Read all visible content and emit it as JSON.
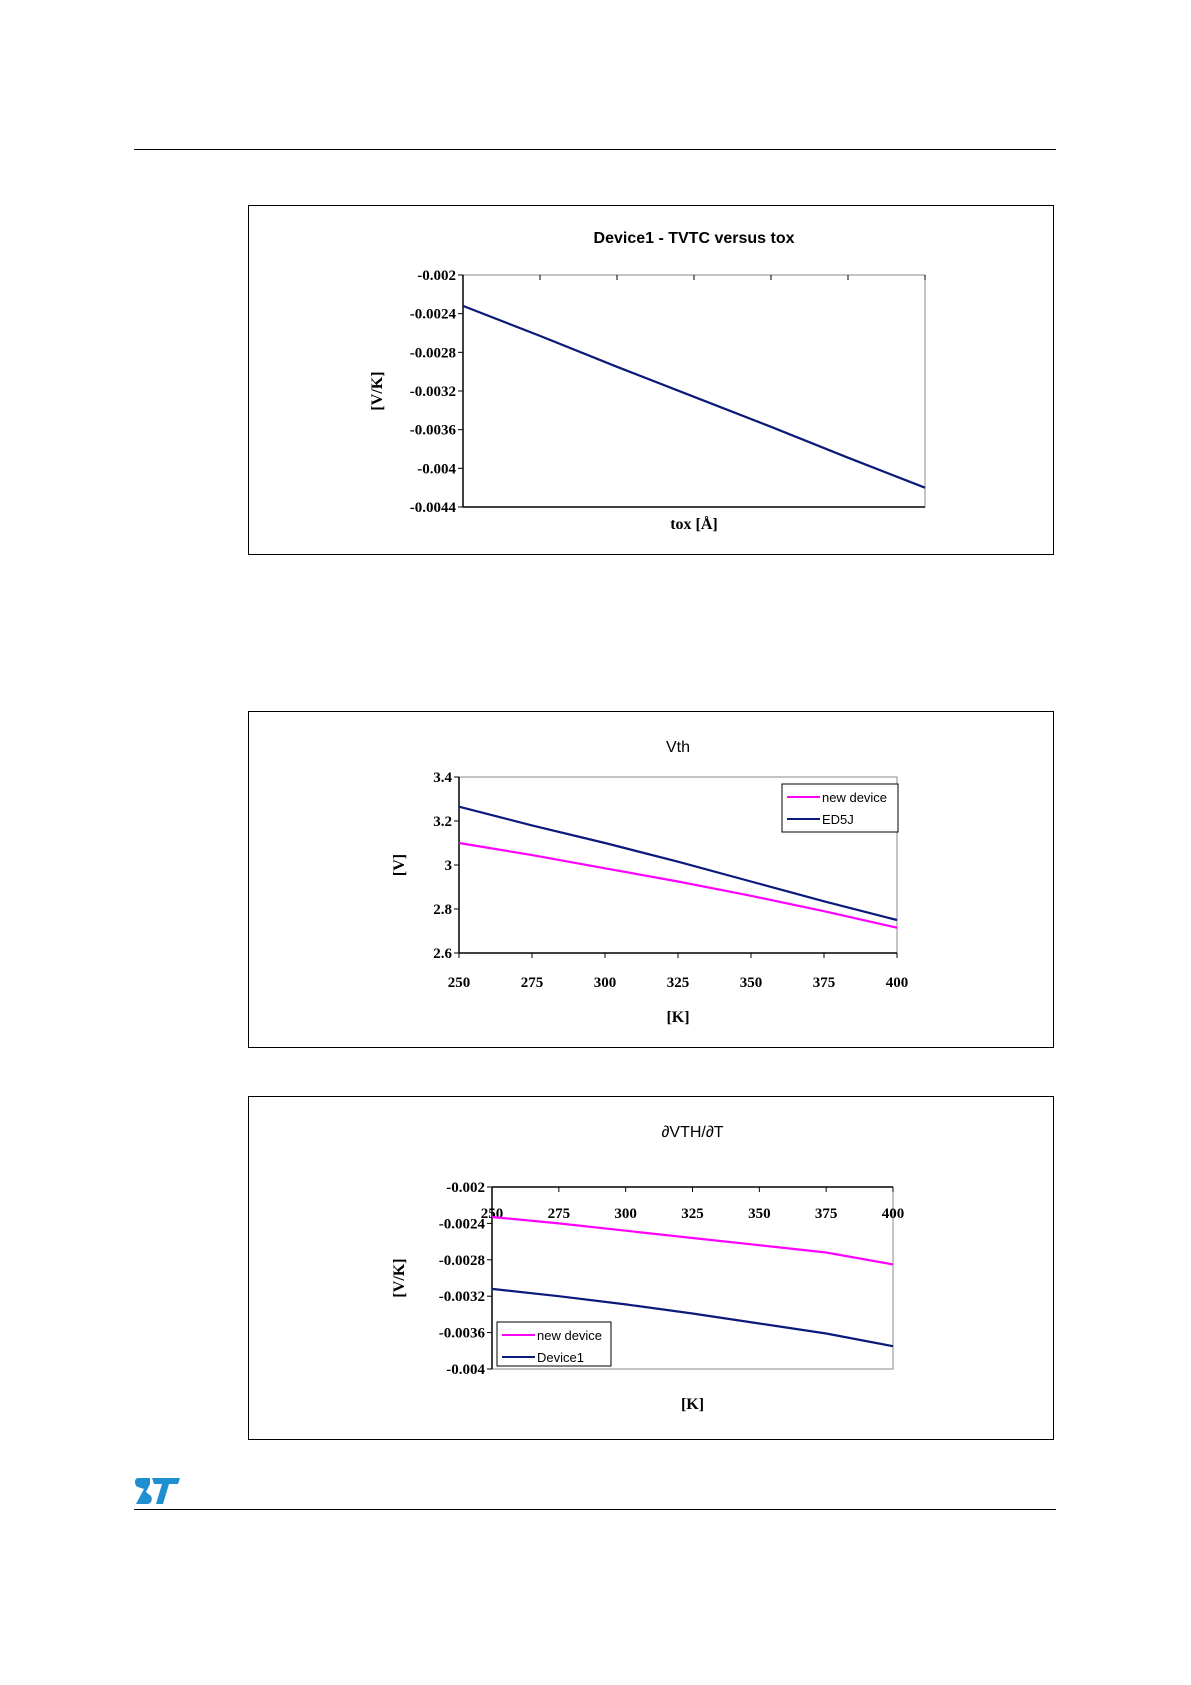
{
  "colors": {
    "navy": "#0a1a7a",
    "magenta": "#ff00ff",
    "logo_blue": "#1e8fd0"
  },
  "logo": {
    "icon": "st-logo-icon",
    "text": "ST"
  },
  "chart_data": [
    {
      "type": "line",
      "title": "Device1 - TVTC versus tox",
      "xlabel": "tox [Å]",
      "ylabel": "[V/K]",
      "xlim": [
        0,
        6
      ],
      "ylim": [
        -0.0044,
        -0.002
      ],
      "yticks": [
        -0.002,
        -0.0024,
        -0.0028,
        -0.0032,
        -0.0036,
        -0.004,
        -0.0044
      ],
      "ytick_labels": [
        "-0.002",
        "-0.0024",
        "-0.0028",
        "-0.0032",
        "-0.0036",
        "-0.004",
        "-0.0044"
      ],
      "grid": false,
      "series": [
        {
          "color": "#0a1a7a",
          "x": [
            0,
            1,
            2,
            3,
            4,
            5,
            6
          ],
          "y": [
            -0.00232,
            -0.00263,
            -0.00295,
            -0.00326,
            -0.00357,
            -0.00389,
            -0.0042
          ]
        }
      ]
    },
    {
      "type": "line",
      "title": "Vth",
      "xlabel": "[K]",
      "ylabel": "[V]",
      "xlim": [
        250,
        400
      ],
      "ylim": [
        2.6,
        3.4
      ],
      "xticks": [
        250,
        275,
        300,
        325,
        350,
        375,
        400
      ],
      "xtick_labels": [
        "250",
        "275",
        "300",
        "325",
        "350",
        "375",
        "400"
      ],
      "yticks": [
        2.6,
        2.8,
        3,
        3.2,
        3.4
      ],
      "ytick_labels": [
        "2.6",
        "2.8",
        "3",
        "3.2",
        "3.4"
      ],
      "legend": "top-right",
      "series": [
        {
          "name": "new device",
          "color": "#ff00ff",
          "x": [
            250,
            275,
            300,
            325,
            350,
            375,
            400
          ],
          "y": [
            3.1,
            3.045,
            2.985,
            2.925,
            2.86,
            2.79,
            2.715
          ]
        },
        {
          "name": "ED5J",
          "color": "#0a1a7a",
          "x": [
            250,
            275,
            300,
            325,
            350,
            375,
            400
          ],
          "y": [
            3.265,
            3.18,
            3.1,
            3.015,
            2.925,
            2.835,
            2.75
          ]
        }
      ]
    },
    {
      "type": "line",
      "title": "∂VTH/∂T",
      "xlabel": "[K]",
      "ylabel": "[V/K]",
      "xlim": [
        250,
        400
      ],
      "ylim": [
        -0.004,
        -0.002
      ],
      "xticks": [
        250,
        275,
        300,
        325,
        350,
        375,
        400
      ],
      "xtick_labels": [
        "250",
        "275",
        "300",
        "325",
        "350",
        "375",
        "400"
      ],
      "yticks": [
        -0.002,
        -0.0024,
        -0.0028,
        -0.0032,
        -0.0036,
        -0.004
      ],
      "ytick_labels": [
        "-0.002",
        "-0.0024",
        "-0.0028",
        "-0.0032",
        "-0.0036",
        "-0.004"
      ],
      "legend": "bottom-left",
      "series": [
        {
          "name": "new device",
          "color": "#ff00ff",
          "x": [
            250,
            275,
            300,
            325,
            350,
            375,
            400
          ],
          "y": [
            -0.00233,
            -0.0024,
            -0.00248,
            -0.00256,
            -0.00264,
            -0.00272,
            -0.00285
          ]
        },
        {
          "name": "Device1",
          "color": "#0a1a7a",
          "x": [
            250,
            275,
            300,
            325,
            350,
            375,
            400
          ],
          "y": [
            -0.00312,
            -0.0032,
            -0.00329,
            -0.00339,
            -0.0035,
            -0.00361,
            -0.00375
          ]
        }
      ]
    }
  ]
}
